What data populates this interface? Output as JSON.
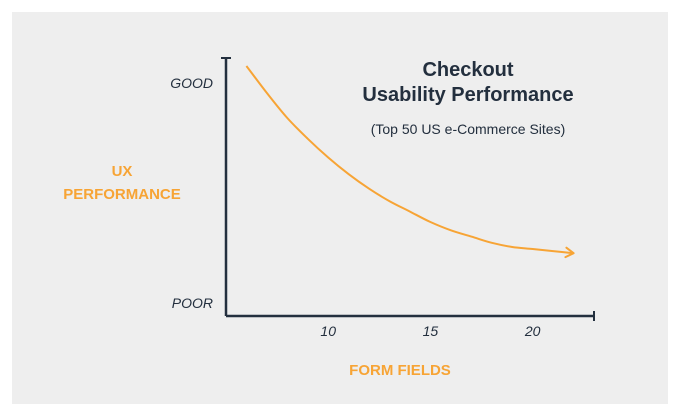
{
  "chart_data": {
    "type": "line",
    "title_lines": [
      "Checkout",
      "Usability Performance"
    ],
    "subtitle": "(Top 50 US e-Commerce Sites)",
    "xlabel": "FORM FIELDS",
    "ylabel_lines": [
      "UX",
      "PERFORMANCE"
    ],
    "x_ticks": [
      "10",
      "15",
      "20"
    ],
    "y_ticks": [
      "GOOD",
      "POOR"
    ],
    "xlim": [
      5,
      23
    ],
    "ylim": [
      0,
      1
    ],
    "grid": false,
    "series": [
      {
        "x": [
          6,
          7,
          8,
          9,
          10,
          11,
          12,
          13,
          14,
          15,
          16,
          17,
          18,
          19,
          20,
          21,
          22
        ],
        "y": [
          1.0,
          0.87,
          0.75,
          0.65,
          0.56,
          0.48,
          0.41,
          0.35,
          0.3,
          0.25,
          0.21,
          0.18,
          0.15,
          0.13,
          0.12,
          0.11,
          0.1
        ],
        "arrow_end": true
      }
    ],
    "colors": {
      "curve": "#f7a435",
      "axis": "#232f3e",
      "label": "#f7a435",
      "background": "#eeeeee"
    }
  }
}
